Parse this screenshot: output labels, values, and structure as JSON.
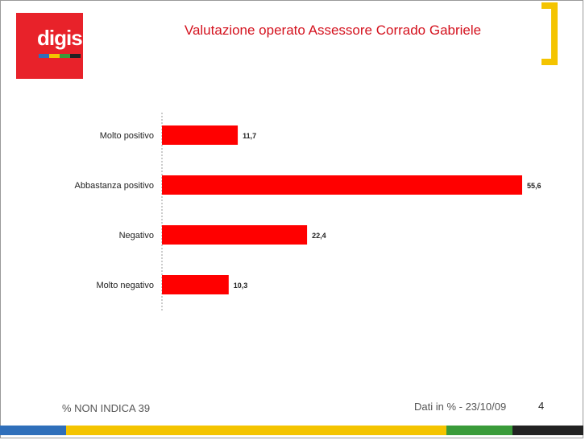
{
  "header": {
    "logo_text": "digis",
    "title": "Valutazione operato Assessore Corrado Gabriele"
  },
  "colors": {
    "brand_red": "#e8222a",
    "bar_red": "#ff0000",
    "title_red": "#d4121e",
    "bracket_yellow": "#f4c400",
    "stripe": [
      "#2f6fba",
      "#f4c400",
      "#3a9b3a",
      "#222222"
    ]
  },
  "chart_data": {
    "type": "bar",
    "orientation": "horizontal",
    "categories": [
      "Molto positivo",
      "Abbastanza positivo",
      "Negativo",
      "Molto negativo"
    ],
    "values": [
      11.7,
      55.6,
      22.4,
      10.3
    ],
    "value_labels": [
      "11,7",
      "55,6",
      "22,4",
      "10,3"
    ],
    "title": "",
    "xlim": [
      0,
      56
    ],
    "grid": false,
    "legend": "none"
  },
  "footer": {
    "non_indica": "% NON INDICA  39",
    "source": "Dati in % - 23/10/09",
    "page_number": "4"
  }
}
